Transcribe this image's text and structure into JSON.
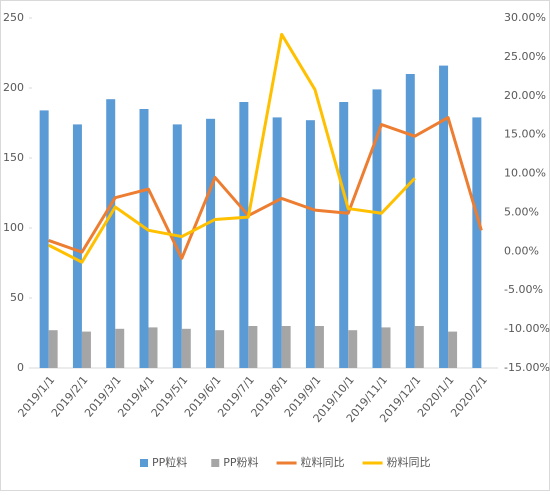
{
  "chart_data": {
    "type": "bar_line",
    "categories": [
      "2019/1/1",
      "2019/2/1",
      "2019/3/1",
      "2019/4/1",
      "2019/5/1",
      "2019/6/1",
      "2019/7/1",
      "2019/8/1",
      "2019/9/1",
      "2019/10/1",
      "2019/11/1",
      "2019/12/1",
      "2020/1/1",
      "2020/2/1"
    ],
    "series": [
      {
        "name": "PP粒料",
        "color": "#5b9bd5",
        "type": "bar",
        "values": [
          184,
          174,
          192,
          185,
          174,
          178,
          190,
          179,
          177,
          190,
          199,
          210,
          216,
          179
        ]
      },
      {
        "name": "PP粉料",
        "color": "#a5a5a5",
        "type": "bar",
        "values": [
          27,
          26,
          28,
          29,
          28,
          27,
          30,
          30,
          30,
          27,
          29,
          30,
          26,
          null
        ]
      },
      {
        "name": "粒料同比",
        "color": "#ed7d31",
        "type": "line",
        "axis": "y2",
        "values": [
          1.4,
          -0.1,
          6.9,
          8.0,
          -0.9,
          9.5,
          4.6,
          6.8,
          5.3,
          4.9,
          16.3,
          14.8,
          17.2,
          2.7
        ]
      },
      {
        "name": "粉料同比",
        "color": "#ffc000",
        "type": "line",
        "axis": "y2",
        "values": [
          0.8,
          -1.4,
          5.7,
          2.7,
          1.9,
          4.1,
          4.4,
          27.9,
          20.8,
          5.5,
          4.9,
          9.4,
          null,
          null
        ]
      }
    ],
    "ylim": [
      0,
      250
    ],
    "yticks": [
      0,
      50,
      100,
      150,
      200,
      250
    ],
    "y2lim": [
      -15,
      30
    ],
    "y2ticks": [
      {
        "value": -15,
        "label": "-15.00%"
      },
      {
        "value": -10,
        "label": "-10.00%"
      },
      {
        "value": -5,
        "label": "-5.00%"
      },
      {
        "value": 0,
        "label": "0.00%"
      },
      {
        "value": 5,
        "label": "5.00%"
      },
      {
        "value": 10,
        "label": "10.00%"
      },
      {
        "value": 15,
        "label": "15.00%"
      },
      {
        "value": 20,
        "label": "20.00%"
      },
      {
        "value": 25,
        "label": "25.00%"
      },
      {
        "value": 30,
        "label": "30.00%"
      }
    ],
    "legend": "bottom"
  }
}
